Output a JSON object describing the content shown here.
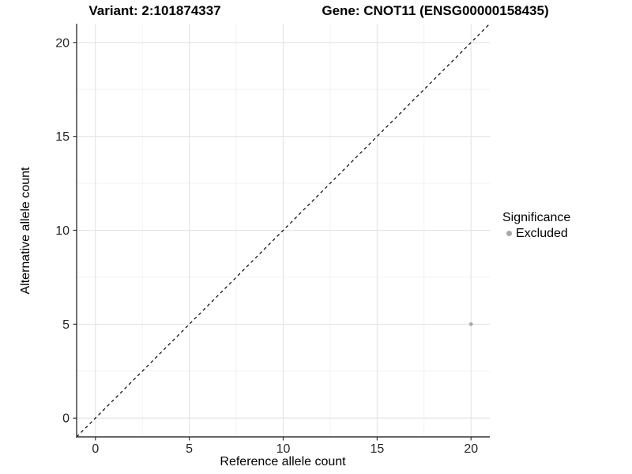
{
  "chart_data": {
    "type": "scatter",
    "titles": {
      "left": "Variant: 2:101874337",
      "right": "Gene: CNOT11 (ENSG00000158435)"
    },
    "xlabel": "Reference allele count",
    "ylabel": "Alternative allele count",
    "xlim": [
      -1,
      21
    ],
    "ylim": [
      -1,
      21
    ],
    "x_ticks": [
      0,
      5,
      10,
      15,
      20
    ],
    "y_ticks": [
      0,
      5,
      10,
      15,
      20
    ],
    "x_minor_ticks": [
      2.5,
      7.5,
      12.5,
      17.5
    ],
    "y_minor_ticks": [
      2.5,
      7.5,
      12.5,
      17.5
    ],
    "grid": true,
    "reference_line": {
      "type": "identity-diagonal",
      "style": "dashed",
      "color": "#000000"
    },
    "series": [
      {
        "name": "Excluded",
        "color": "#a8a8a8",
        "points": [
          {
            "x": 20,
            "y": 5
          }
        ]
      }
    ],
    "legend": {
      "title": "Significance",
      "position": "right",
      "entries": [
        {
          "label": "Excluded",
          "color": "#a8a8a8"
        }
      ]
    },
    "colors": {
      "background": "#ffffff",
      "grid_major": "#e3e3e3",
      "grid_minor": "#f0f0f0",
      "axis_line": "#333333",
      "tick_mark": "#333333",
      "tick_label": "#262626",
      "title": "#000000",
      "diagonal": "#000000",
      "point": "#a8a8a8"
    }
  }
}
